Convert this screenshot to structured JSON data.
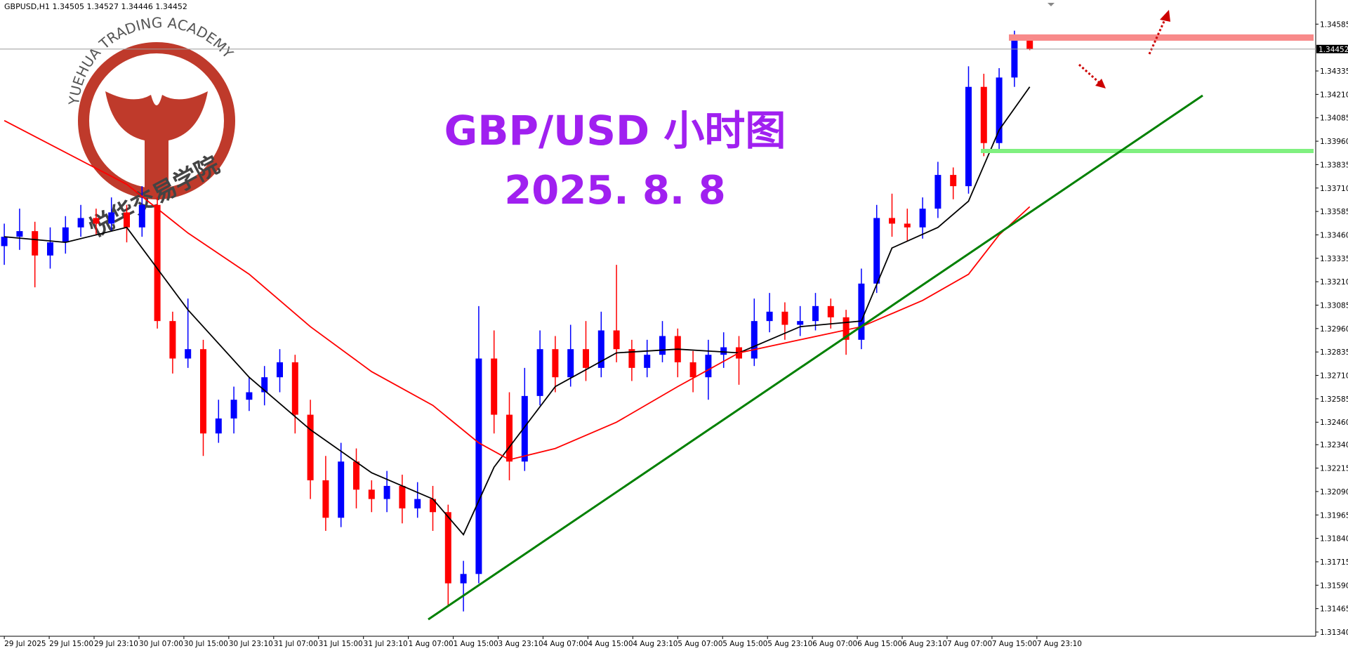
{
  "chart_data": {
    "type": "candlestick",
    "header": "GBPUSD,H1  1.34505 1.34527 1.34446 1.34452",
    "title": "GBP/USD 小时图",
    "subtitle": "2025. 8. 8",
    "logo_text": "YUEHUA TRADING ACADEMY",
    "logo_cn": "悦华交易学院",
    "up_color": "#0000ff",
    "down_color": "#ff0000",
    "ylim": [
      1.3131,
      1.3471
    ],
    "yticks": [
      1.34585,
      1.34335,
      {
        "value": 1.3421,
        "label": "1.34210"
      },
      1.34085,
      {
        "value": 1.3396,
        "label": "1.33960"
      },
      1.33835,
      {
        "value": 1.3371,
        "label": "1.33710"
      },
      1.33585,
      {
        "value": 1.3346,
        "label": "1.33460"
      },
      1.33335,
      {
        "value": 1.3321,
        "label": "1.33210"
      },
      1.33085,
      {
        "value": 1.3296,
        "label": "1.32960"
      },
      1.32835,
      {
        "value": 1.3271,
        "label": "1.32710"
      },
      1.32585,
      {
        "value": 1.3246,
        "label": "1.32460"
      },
      {
        "value": 1.3234,
        "label": "1.32340"
      },
      1.32215,
      {
        "value": 1.3209,
        "label": "1.32090"
      },
      1.31965,
      {
        "value": 1.3184,
        "label": "1.31840"
      },
      1.31715,
      {
        "value": 1.3159,
        "label": "1.31590"
      },
      1.31465,
      {
        "value": 1.3134,
        "label": "1.31340"
      }
    ],
    "current_price": 1.34452,
    "xlabels": [
      "29 Jul 2025",
      "29 Jul 15:00",
      "29 Jul 23:10",
      "30 Jul 07:00",
      "30 Jul 15:00",
      "30 Jul 23:10",
      "31 Jul 07:00",
      "31 Jul 15:00",
      "31 Jul 23:10",
      "1 Aug 07:00",
      "1 Aug 15:00",
      "3 Aug 23:10",
      "4 Aug 07:00",
      "4 Aug 15:00",
      "4 Aug 23:10",
      "5 Aug 07:00",
      "5 Aug 15:00",
      "5 Aug 23:10",
      "6 Aug 07:00",
      "6 Aug 15:00",
      "6 Aug 23:10",
      "7 Aug 07:00",
      "7 Aug 15:00",
      "7 Aug 23:10"
    ],
    "open": [
      1.334,
      1.3345,
      1.3348,
      1.3335,
      1.3342,
      1.335,
      1.3355,
      1.3352,
      1.3358,
      1.335,
      1.3362,
      1.33,
      1.328,
      1.3285,
      1.324,
      1.3248,
      1.3258,
      1.3262,
      1.327,
      1.3278,
      1.325,
      1.3215,
      1.3195,
      1.3225,
      1.321,
      1.3205,
      1.3212,
      1.32,
      1.3205,
      1.3198,
      1.316,
      1.3165,
      1.328,
      1.325,
      1.3225,
      1.326,
      1.3285,
      1.327,
      1.3285,
      1.3275,
      1.3295,
      1.3285,
      1.3275,
      1.3282,
      1.3292,
      1.3278,
      1.327,
      1.3282,
      1.3286,
      1.328,
      1.33,
      1.3305,
      1.3298,
      1.33,
      1.3308,
      1.3302,
      1.329,
      1.332,
      1.3355,
      1.3352,
      1.335,
      1.336,
      1.3378,
      1.3372,
      1.3425,
      1.3395,
      1.343,
      1.34505
    ],
    "high": [
      1.3352,
      1.336,
      1.3353,
      1.335,
      1.3356,
      1.3362,
      1.336,
      1.3366,
      1.3362,
      1.3372,
      1.3366,
      1.3305,
      1.3312,
      1.329,
      1.3258,
      1.3265,
      1.327,
      1.3276,
      1.3285,
      1.3282,
      1.3258,
      1.3228,
      1.3235,
      1.3232,
      1.3215,
      1.322,
      1.3218,
      1.3214,
      1.3212,
      1.3202,
      1.3172,
      1.3308,
      1.3295,
      1.3262,
      1.3275,
      1.3295,
      1.3292,
      1.3298,
      1.33,
      1.3305,
      1.333,
      1.329,
      1.329,
      1.33,
      1.3296,
      1.3284,
      1.329,
      1.3294,
      1.3292,
      1.3312,
      1.3315,
      1.331,
      1.3308,
      1.3315,
      1.3312,
      1.3306,
      1.3328,
      1.3362,
      1.3368,
      1.336,
      1.3366,
      1.3385,
      1.3382,
      1.3436,
      1.3432,
      1.3435,
      1.3455,
      1.34527
    ],
    "low": [
      1.333,
      1.3338,
      1.3318,
      1.3328,
      1.3336,
      1.3345,
      1.3346,
      1.3348,
      1.3342,
      1.3345,
      1.3296,
      1.3272,
      1.3275,
      1.3228,
      1.3235,
      1.324,
      1.3252,
      1.3255,
      1.3262,
      1.324,
      1.3205,
      1.3188,
      1.319,
      1.32,
      1.3198,
      1.3198,
      1.3192,
      1.3195,
      1.3188,
      1.3148,
      1.3145,
      1.316,
      1.324,
      1.3215,
      1.322,
      1.3255,
      1.3262,
      1.3265,
      1.3268,
      1.327,
      1.3278,
      1.3268,
      1.327,
      1.3278,
      1.327,
      1.3262,
      1.3258,
      1.3275,
      1.3266,
      1.3276,
      1.3294,
      1.329,
      1.3292,
      1.3295,
      1.3296,
      1.3282,
      1.3285,
      1.3315,
      1.3345,
      1.3343,
      1.3344,
      1.3355,
      1.3365,
      1.3368,
      1.3388,
      1.339,
      1.3425,
      1.34446
    ],
    "close": [
      1.3345,
      1.3348,
      1.3335,
      1.3342,
      1.335,
      1.3355,
      1.3352,
      1.3358,
      1.335,
      1.3362,
      1.33,
      1.328,
      1.3285,
      1.324,
      1.3248,
      1.3258,
      1.3262,
      1.327,
      1.3278,
      1.325,
      1.3215,
      1.3195,
      1.3225,
      1.321,
      1.3205,
      1.3212,
      1.32,
      1.3205,
      1.3198,
      1.316,
      1.3165,
      1.328,
      1.325,
      1.3225,
      1.326,
      1.3285,
      1.327,
      1.3285,
      1.3275,
      1.3295,
      1.3285,
      1.3275,
      1.3282,
      1.3292,
      1.3278,
      1.327,
      1.3282,
      1.3286,
      1.328,
      1.33,
      1.3305,
      1.3298,
      1.33,
      1.3308,
      1.3302,
      1.329,
      1.332,
      1.3355,
      1.3352,
      1.335,
      1.336,
      1.3378,
      1.3372,
      1.3425,
      1.3395,
      1.343,
      1.345,
      1.34452
    ],
    "lines": [
      {
        "color": "#000000",
        "x": [
          0,
          4,
          8,
          12,
          16,
          20,
          24,
          28,
          30,
          32,
          36,
          40,
          44,
          48,
          52,
          56,
          58,
          61,
          63,
          65,
          67
        ],
        "values": [
          1.3345,
          1.3342,
          1.335,
          1.3306,
          1.327,
          1.3242,
          1.3219,
          1.3205,
          1.3186,
          1.3222,
          1.3265,
          1.3283,
          1.3285,
          1.3283,
          1.3297,
          1.33,
          1.3339,
          1.335,
          1.3364,
          1.3402,
          1.3425
        ]
      },
      {
        "color": "#ff0000",
        "x": [
          0,
          8,
          12,
          16,
          20,
          24,
          28,
          31,
          33,
          36,
          40,
          44,
          48,
          52,
          56,
          60,
          63,
          65,
          67
        ],
        "values": [
          1.3407,
          1.3373,
          1.3347,
          1.3325,
          1.3297,
          1.3273,
          1.3255,
          1.3235,
          1.3226,
          1.3232,
          1.3246,
          1.3265,
          1.3283,
          1.329,
          1.3297,
          1.3311,
          1.3325,
          1.3346,
          1.3361
        ]
      }
    ]
  }
}
